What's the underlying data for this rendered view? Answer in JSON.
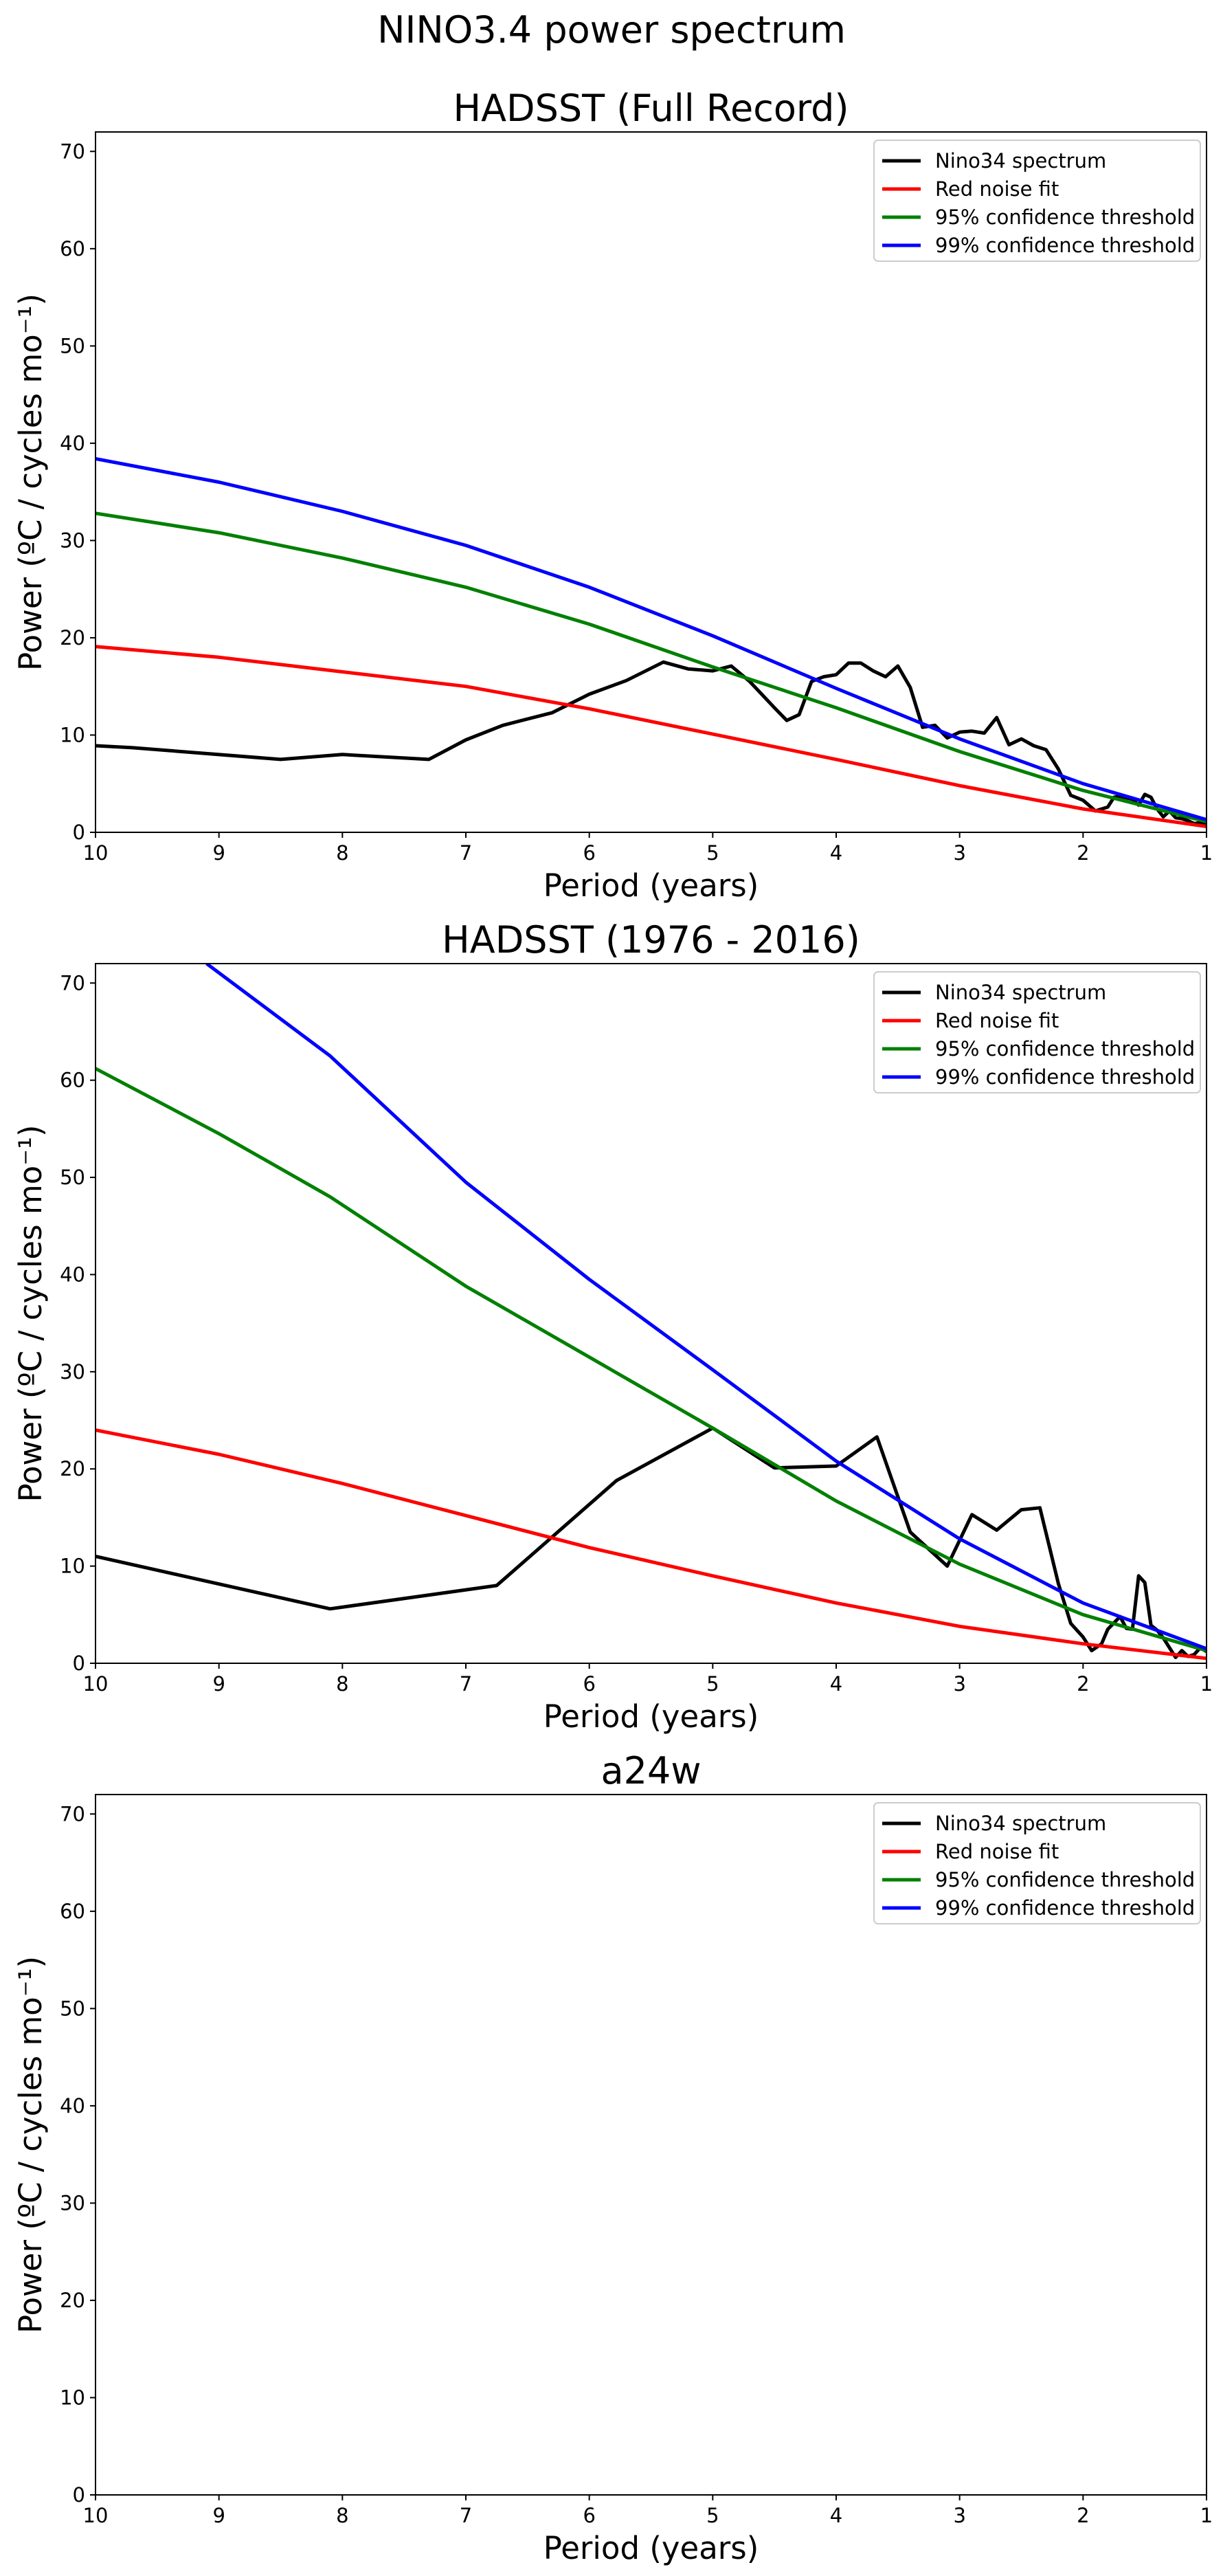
{
  "figure": {
    "suptitle": "NINO3.4 power spectrum"
  },
  "legend_entries": [
    {
      "label": "Nino34 spectrum",
      "color": "#000000"
    },
    {
      "label": "Red noise fit",
      "color": "#ff0000"
    },
    {
      "label": "95% confidence threshold",
      "color": "#008000"
    },
    {
      "label": "99% confidence threshold",
      "color": "#0000ff"
    }
  ],
  "chart_data": [
    {
      "type": "line",
      "title": "HADSST (Full Record)",
      "xlabel": "Period (years)",
      "ylabel": "Power (ºC / cycles mo⁻¹)",
      "xlim": [
        10,
        1
      ],
      "ylim": [
        0,
        72
      ],
      "xticks": [
        10,
        9,
        8,
        7,
        6,
        5,
        4,
        3,
        2,
        1
      ],
      "yticks": [
        0,
        10,
        20,
        30,
        40,
        50,
        60,
        70
      ],
      "legend_position": "upper right",
      "series": [
        {
          "name": "Nino34 spectrum",
          "color": "#000000",
          "x": [
            10,
            9.7,
            8.5,
            8.0,
            7.3,
            7.0,
            6.7,
            6.3,
            6.0,
            5.7,
            5.4,
            5.2,
            5.0,
            4.85,
            4.7,
            4.5,
            4.4,
            4.3,
            4.2,
            4.1,
            4.0,
            3.9,
            3.8,
            3.7,
            3.6,
            3.5,
            3.4,
            3.3,
            3.2,
            3.1,
            3.0,
            2.9,
            2.8,
            2.7,
            2.6,
            2.5,
            2.4,
            2.3,
            2.2,
            2.1,
            2.0,
            1.9,
            1.8,
            1.75,
            1.7,
            1.6,
            1.55,
            1.5,
            1.45,
            1.4,
            1.35,
            1.3,
            1.25,
            1.2,
            1.15,
            1.1,
            1.05,
            1.0
          ],
          "y": [
            8.9,
            8.7,
            7.5,
            8.0,
            7.5,
            9.5,
            11.0,
            12.3,
            14.2,
            15.6,
            17.5,
            16.8,
            16.6,
            17.1,
            15.5,
            12.8,
            11.5,
            12.1,
            15.5,
            16.0,
            16.2,
            17.4,
            17.4,
            16.6,
            16.0,
            17.1,
            14.9,
            10.8,
            11.0,
            9.7,
            10.3,
            10.4,
            10.2,
            11.8,
            9.0,
            9.6,
            8.9,
            8.5,
            6.5,
            3.8,
            3.3,
            2.2,
            2.6,
            3.6,
            3.7,
            3.4,
            2.8,
            3.9,
            3.6,
            2.4,
            1.6,
            2.2,
            1.5,
            1.4,
            1.2,
            0.9,
            1.0,
            0.8
          ]
        },
        {
          "name": "Red noise fit",
          "color": "#ff0000",
          "x": [
            10,
            9,
            8,
            7,
            6,
            5,
            4,
            3,
            2,
            1
          ],
          "y": [
            19.1,
            18.0,
            16.5,
            15.0,
            12.7,
            10.1,
            7.5,
            4.8,
            2.4,
            0.6
          ]
        },
        {
          "name": "95% confidence threshold",
          "color": "#008000",
          "x": [
            10,
            9,
            8,
            7,
            6,
            5,
            4,
            3,
            2,
            1
          ],
          "y": [
            32.8,
            30.8,
            28.2,
            25.2,
            21.4,
            17.0,
            12.8,
            8.3,
            4.3,
            1.1
          ]
        },
        {
          "name": "99% confidence threshold",
          "color": "#0000ff",
          "x": [
            10,
            9,
            8,
            7,
            6,
            5,
            4,
            3,
            2,
            1
          ],
          "y": [
            38.4,
            36.0,
            33.0,
            29.5,
            25.2,
            20.2,
            14.8,
            9.6,
            5.0,
            1.3
          ]
        }
      ]
    },
    {
      "type": "line",
      "title": "HADSST (1976 - 2016)",
      "xlabel": "Period (years)",
      "ylabel": "Power (ºC / cycles mo⁻¹)",
      "xlim": [
        10,
        1
      ],
      "ylim": [
        0,
        72
      ],
      "xticks": [
        10,
        9,
        8,
        7,
        6,
        5,
        4,
        3,
        2,
        1
      ],
      "yticks": [
        0,
        10,
        20,
        30,
        40,
        50,
        60,
        70
      ],
      "legend_position": "upper right",
      "series": [
        {
          "name": "Nino34 spectrum",
          "color": "#000000",
          "x": [
            10,
            8.1,
            6.75,
            5.78,
            5.0,
            4.5,
            4.0,
            3.67,
            3.4,
            3.1,
            2.9,
            2.7,
            2.5,
            2.35,
            2.2,
            2.1,
            2.0,
            1.93,
            1.85,
            1.8,
            1.7,
            1.65,
            1.6,
            1.55,
            1.5,
            1.45,
            1.4,
            1.35,
            1.3,
            1.25,
            1.2,
            1.15,
            1.1,
            1.05,
            1.0
          ],
          "y": [
            11.0,
            5.6,
            8.0,
            18.8,
            24.2,
            20.1,
            20.3,
            23.3,
            13.5,
            10.0,
            15.3,
            13.7,
            15.8,
            16.0,
            8.2,
            4.1,
            2.7,
            1.3,
            2.0,
            3.5,
            4.8,
            3.6,
            3.5,
            9.0,
            8.3,
            3.9,
            3.4,
            2.6,
            1.6,
            0.6,
            1.3,
            0.7,
            0.9,
            1.6,
            1.2
          ]
        },
        {
          "name": "Red noise fit",
          "color": "#ff0000",
          "x": [
            10,
            9,
            8,
            7,
            6,
            5,
            4,
            3,
            2,
            1
          ],
          "y": [
            24.0,
            21.5,
            18.5,
            15.2,
            11.9,
            9.0,
            6.2,
            3.8,
            2.0,
            0.5
          ]
        },
        {
          "name": "95% confidence threshold",
          "color": "#008000",
          "x": [
            10,
            9,
            8.1,
            7,
            6,
            5,
            4,
            3,
            2,
            1
          ],
          "y": [
            61.2,
            54.5,
            48.0,
            38.8,
            31.5,
            24.2,
            16.7,
            10.2,
            5.0,
            1.3
          ]
        },
        {
          "name": "99% confidence threshold",
          "color": "#0000ff",
          "x": [
            9.1,
            8.1,
            7,
            6,
            5,
            4,
            3,
            2,
            1
          ],
          "y": [
            72.0,
            62.5,
            49.5,
            39.5,
            30.2,
            20.8,
            12.8,
            6.2,
            1.5
          ]
        }
      ]
    },
    {
      "type": "line",
      "title": "a24w",
      "xlabel": "Period (years)",
      "ylabel": "Power (ºC / cycles mo⁻¹)",
      "xlim": [
        10,
        1
      ],
      "ylim": [
        0,
        72
      ],
      "xticks": [
        10,
        9,
        8,
        7,
        6,
        5,
        4,
        3,
        2,
        1
      ],
      "yticks": [
        0,
        10,
        20,
        30,
        40,
        50,
        60,
        70
      ],
      "legend_position": "upper right",
      "series": [
        {
          "name": "Nino34 spectrum",
          "color": "#000000",
          "x": [],
          "y": []
        },
        {
          "name": "Red noise fit",
          "color": "#ff0000",
          "x": [],
          "y": []
        },
        {
          "name": "95% confidence threshold",
          "color": "#008000",
          "x": [],
          "y": []
        },
        {
          "name": "99% confidence threshold",
          "color": "#0000ff",
          "x": [],
          "y": []
        }
      ]
    }
  ]
}
